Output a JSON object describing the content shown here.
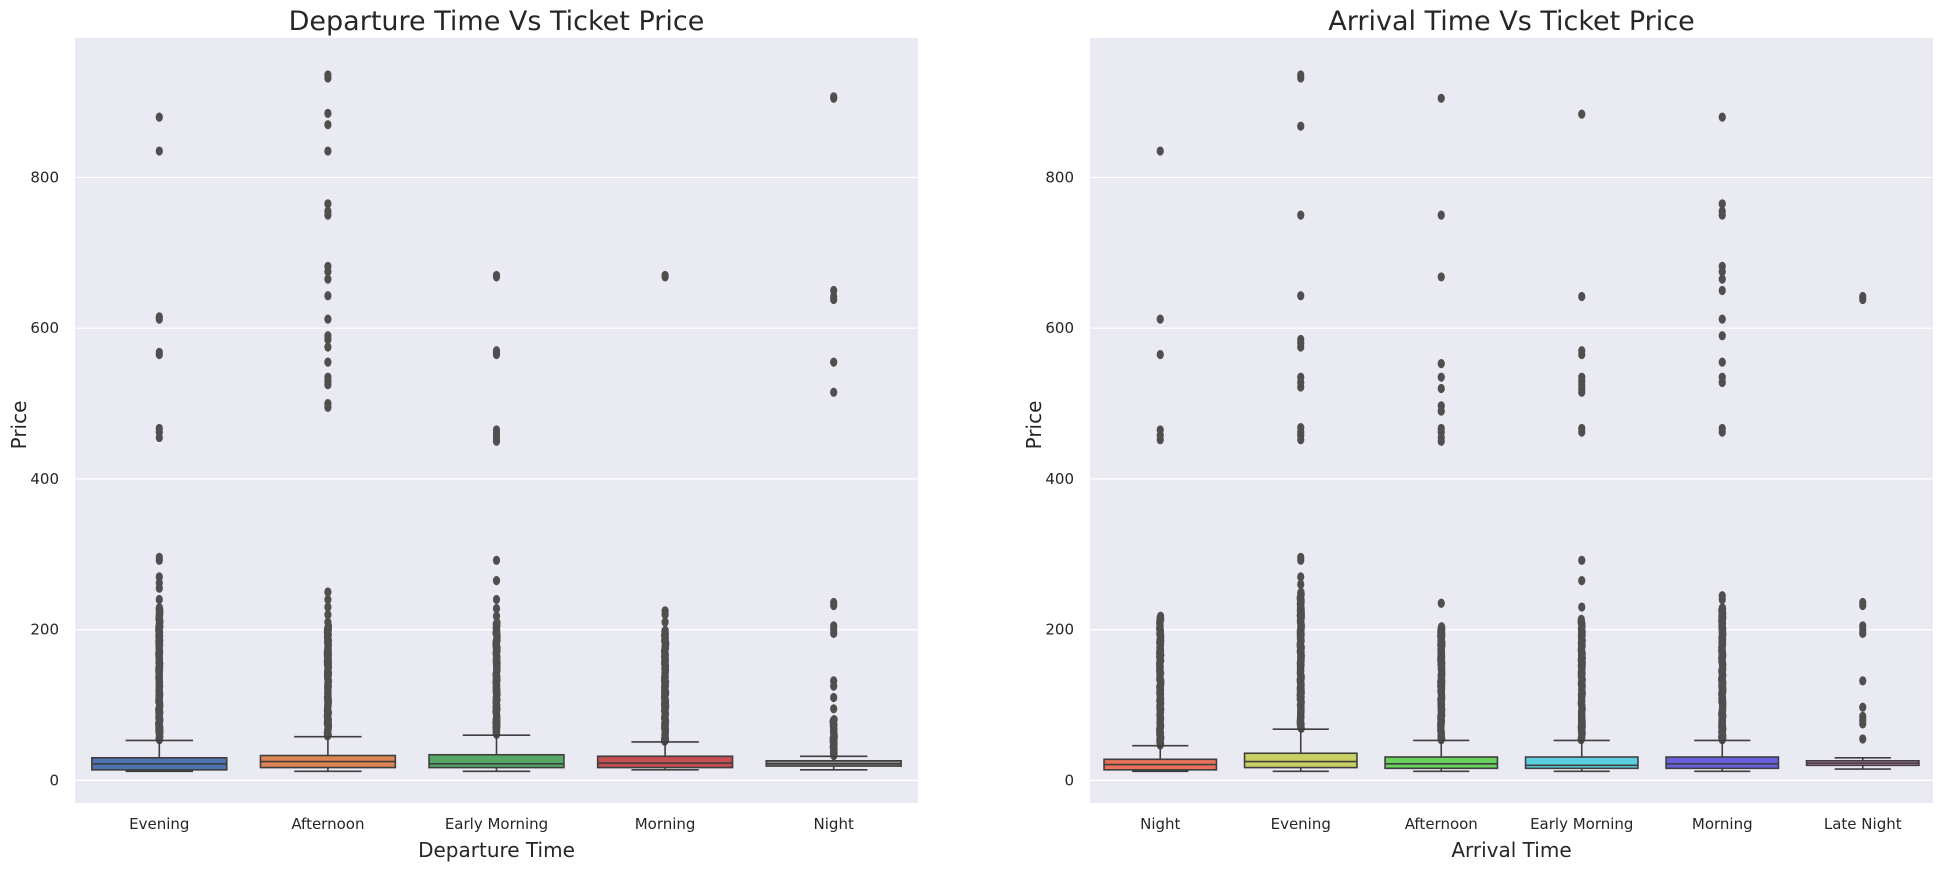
{
  "chart_data": [
    {
      "type": "box",
      "title": "Departure Time Vs Ticket Price",
      "xlabel": "Departure Time",
      "ylabel": "Price",
      "ylim": [
        -30,
        985
      ],
      "yticks": [
        0,
        200,
        400,
        600,
        800
      ],
      "grid": true,
      "categories": [
        "Evening",
        "Afternoon",
        "Early Morning",
        "Morning",
        "Night"
      ],
      "colors": [
        "#4c72b0",
        "#dd8452",
        "#55a868",
        "#c44e52",
        "#8c8c8c"
      ],
      "boxes": [
        {
          "whislo": 12,
          "q1": 14,
          "med": 22,
          "q3": 30,
          "whishi": 53,
          "outlier_range": [
            54,
            230
          ],
          "outliers": [
            240,
            255,
            262,
            270,
            292,
            296,
            455,
            462,
            467,
            565,
            568,
            612,
            615,
            835,
            880
          ]
        },
        {
          "whislo": 12,
          "q1": 17,
          "med": 25,
          "q3": 33,
          "whishi": 58,
          "outlier_range": [
            59,
            205
          ],
          "outliers": [
            210,
            220,
            230,
            240,
            250,
            495,
            500,
            525,
            530,
            535,
            555,
            575,
            585,
            590,
            612,
            643,
            665,
            675,
            682,
            750,
            755,
            765,
            835,
            870,
            885,
            932,
            936
          ]
        },
        {
          "whislo": 12,
          "q1": 17,
          "med": 22,
          "q3": 34,
          "whishi": 60,
          "outlier_range": [
            61,
            210
          ],
          "outliers": [
            218,
            228,
            240,
            265,
            292,
            450,
            455,
            460,
            465,
            565,
            568,
            570,
            668,
            670
          ]
        },
        {
          "whislo": 14,
          "q1": 17,
          "med": 23,
          "q3": 32,
          "whishi": 51,
          "outlier_range": [
            52,
            200
          ],
          "outliers": [
            210,
            220,
            225,
            668,
            670
          ]
        },
        {
          "whislo": 14,
          "q1": 19,
          "med": 22,
          "q3": 26,
          "whishi": 32,
          "outlier_range": [
            33,
            82
          ],
          "outliers": [
            95,
            110,
            125,
            132,
            195,
            200,
            205,
            232,
            236,
            515,
            555,
            638,
            642,
            650,
            905,
            907
          ]
        }
      ]
    },
    {
      "type": "box",
      "title": "Arrival Time Vs Ticket Price",
      "xlabel": "Arrival Time",
      "ylabel": "Price",
      "ylim": [
        -30,
        985
      ],
      "yticks": [
        0,
        200,
        400,
        600,
        800
      ],
      "grid": true,
      "categories": [
        "Night",
        "Evening",
        "Afternoon",
        "Early Morning",
        "Morning",
        "Late Night"
      ],
      "colors": [
        "#e9715a",
        "#c8d161",
        "#67d15c",
        "#5bcfe0",
        "#6a5ee0",
        "#c97cc0"
      ],
      "boxes": [
        {
          "whislo": 12,
          "q1": 14,
          "med": 21,
          "q3": 28,
          "whishi": 46,
          "outlier_range": [
            47,
            218
          ],
          "outliers": [
            452,
            458,
            465,
            565,
            612,
            835
          ]
        },
        {
          "whislo": 12,
          "q1": 17,
          "med": 25,
          "q3": 36,
          "whishi": 68,
          "outlier_range": [
            69,
            250
          ],
          "outliers": [
            260,
            270,
            292,
            296,
            452,
            458,
            462,
            468,
            522,
            528,
            535,
            575,
            580,
            585,
            643,
            750,
            868,
            932,
            936
          ]
        },
        {
          "whislo": 12,
          "q1": 16,
          "med": 22,
          "q3": 31,
          "whishi": 53,
          "outlier_range": [
            54,
            205
          ],
          "outliers": [
            235,
            450,
            455,
            462,
            467,
            490,
            497,
            520,
            535,
            553,
            668,
            750,
            905
          ]
        },
        {
          "whislo": 12,
          "q1": 16,
          "med": 20,
          "q3": 31,
          "whishi": 53,
          "outlier_range": [
            54,
            215
          ],
          "outliers": [
            230,
            265,
            292,
            462,
            467,
            515,
            520,
            525,
            530,
            535,
            565,
            570,
            642,
            884
          ]
        },
        {
          "whislo": 12,
          "q1": 16,
          "med": 22,
          "q3": 31,
          "whishi": 53,
          "outlier_range": [
            54,
            230
          ],
          "outliers": [
            240,
            245,
            462,
            467,
            528,
            535,
            555,
            590,
            612,
            650,
            665,
            675,
            682,
            750,
            755,
            765,
            880
          ]
        },
        {
          "whislo": 15,
          "q1": 20,
          "med": 23,
          "q3": 26,
          "whishi": 30,
          "outlier_range": [
            0,
            0
          ],
          "outliers": [
            55,
            75,
            80,
            85,
            97,
            132,
            195,
            200,
            205,
            232,
            236,
            638,
            642
          ]
        }
      ]
    }
  ]
}
